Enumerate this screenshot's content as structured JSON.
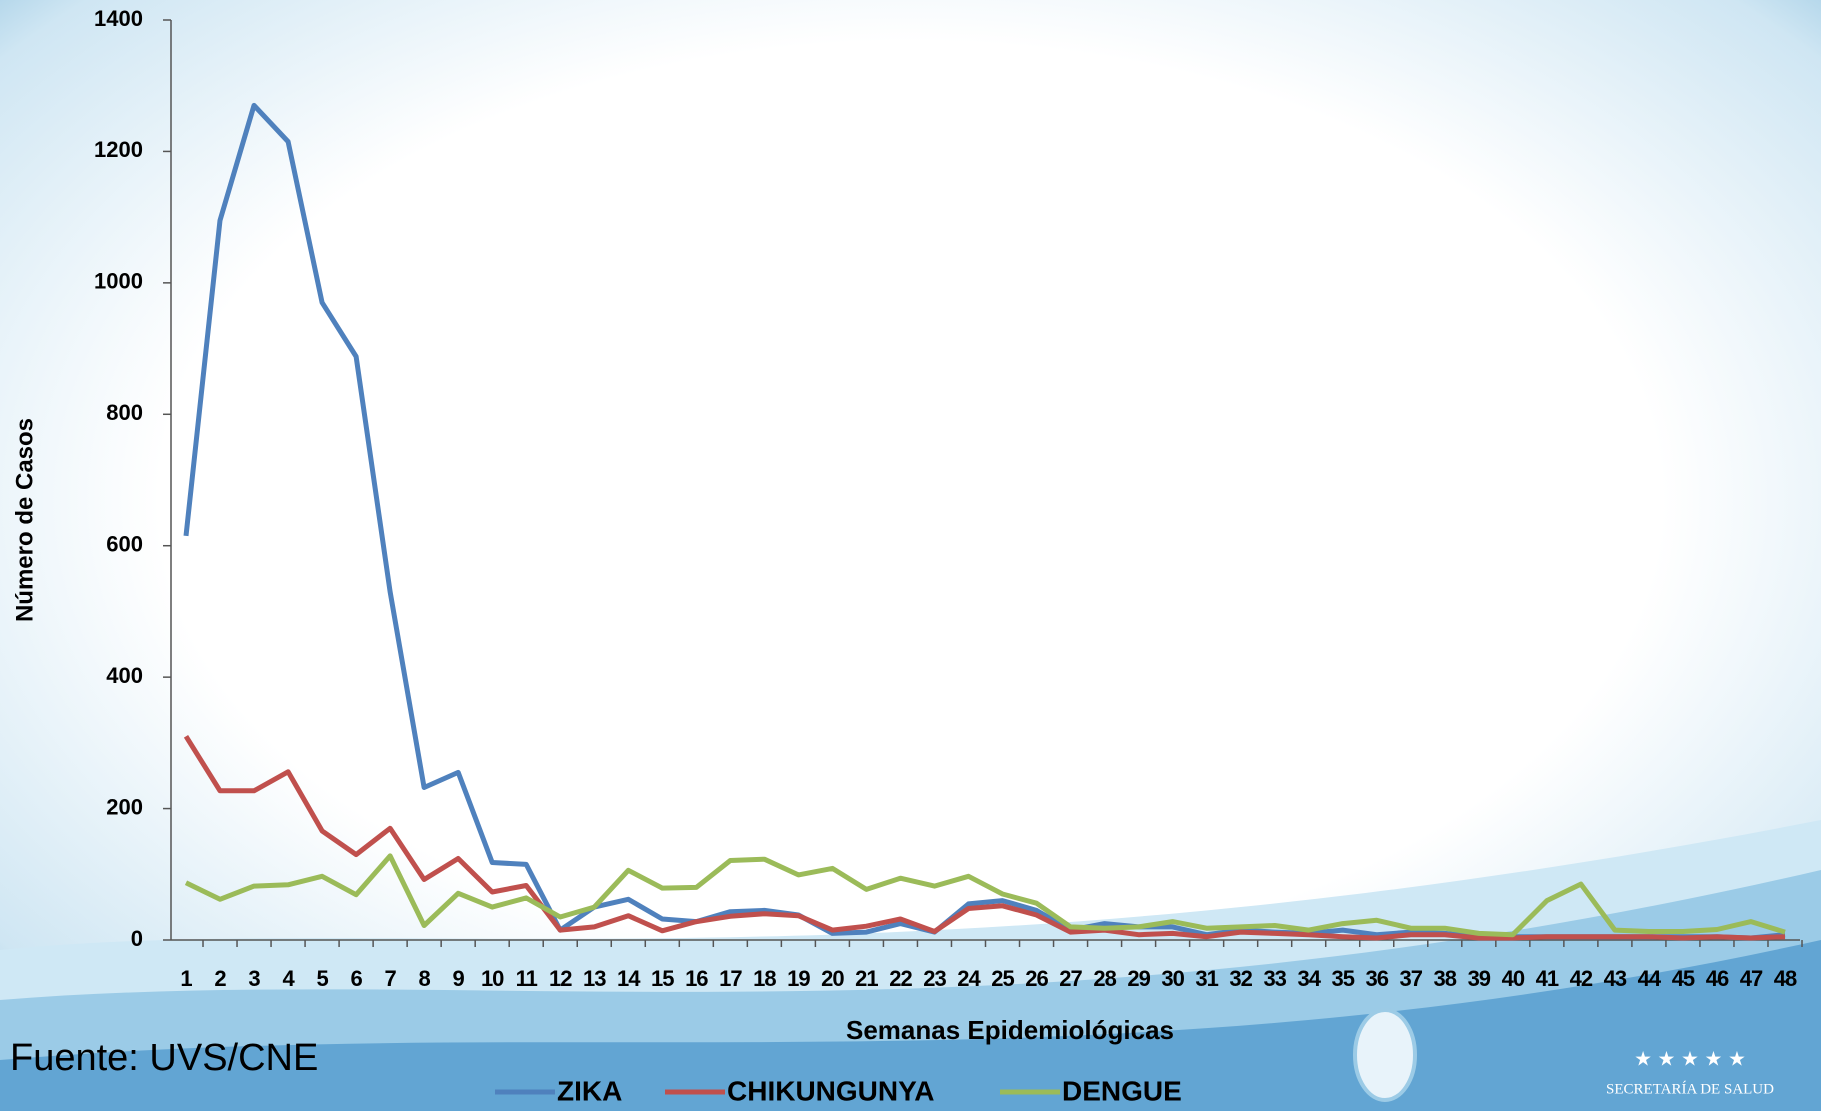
{
  "chart_data": {
    "type": "line",
    "x_label": "Semanas Epidemiológicas",
    "y_label": "Número de Casos",
    "source": "Fuente: UVS/CNE",
    "logo_text": "SECRETARÍA DE SALUD",
    "categories": [
      1,
      2,
      3,
      4,
      5,
      6,
      7,
      8,
      9,
      10,
      11,
      12,
      13,
      14,
      15,
      16,
      17,
      18,
      19,
      20,
      21,
      22,
      23,
      24,
      25,
      26,
      27,
      28,
      29,
      30,
      31,
      32,
      33,
      34,
      35,
      36,
      37,
      38,
      39,
      40,
      41,
      42,
      43,
      44,
      45,
      46,
      47,
      48
    ],
    "ylim": [
      0,
      1400
    ],
    "yticks": [
      0,
      200,
      400,
      600,
      800,
      1000,
      1200,
      1400
    ],
    "series": [
      {
        "name": "ZIKA",
        "color": "#4f81bd",
        "values": [
          615,
          1095,
          1270,
          1215,
          970,
          888,
          530,
          232,
          255,
          118,
          115,
          15,
          50,
          62,
          32,
          28,
          43,
          45,
          38,
          10,
          12,
          25,
          12,
          55,
          60,
          45,
          15,
          25,
          20,
          20,
          8,
          15,
          12,
          10,
          15,
          8,
          12,
          10,
          5,
          5,
          5,
          5,
          5,
          5,
          5,
          5,
          3,
          8
        ]
      },
      {
        "name": "CHIKUNGUNYA",
        "color": "#c0504d",
        "values": [
          310,
          227,
          227,
          256,
          166,
          130,
          170,
          92,
          124,
          73,
          83,
          15,
          20,
          37,
          14,
          28,
          36,
          40,
          37,
          15,
          21,
          32,
          13,
          48,
          52,
          38,
          12,
          15,
          8,
          10,
          5,
          12,
          10,
          8,
          5,
          3,
          8,
          8,
          3,
          3,
          5,
          5,
          5,
          5,
          3,
          5,
          3,
          5
        ]
      },
      {
        "name": "DENGUE",
        "color": "#9bbb59",
        "values": [
          87,
          62,
          82,
          84,
          97,
          69,
          128,
          22,
          71,
          50,
          64,
          35,
          50,
          106,
          79,
          80,
          121,
          123,
          99,
          109,
          77,
          94,
          82,
          97,
          70,
          56,
          20,
          18,
          20,
          28,
          18,
          20,
          22,
          15,
          25,
          30,
          18,
          18,
          10,
          8,
          60,
          85,
          15,
          13,
          13,
          16,
          28,
          12
        ]
      }
    ]
  }
}
